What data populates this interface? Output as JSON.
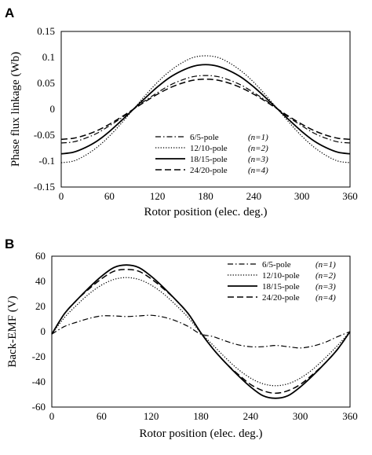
{
  "chart_data": [
    {
      "panel": "A",
      "type": "line",
      "xlabel": "Rotor position (elec. deg.)",
      "ylabel": "Phase flux linkage (Wb)",
      "xlim": [
        0,
        360
      ],
      "ylim": [
        -0.15,
        0.15
      ],
      "xticks": [
        "0",
        "60",
        "120",
        "180",
        "240",
        "300",
        "360"
      ],
      "yticks": [
        "0.15",
        "0.1",
        "0.05",
        "0",
        "-0.05",
        "-0.1",
        "-0.15"
      ],
      "grid": false,
      "legend_placement": "bottom-right",
      "x": [
        0,
        15,
        30,
        45,
        60,
        75,
        90,
        105,
        120,
        135,
        150,
        165,
        180,
        195,
        210,
        225,
        240,
        255,
        270,
        285,
        300,
        315,
        330,
        345,
        360
      ],
      "series": [
        {
          "name": "6/5-pole",
          "n_label": "(n=1)",
          "style": "dashdot",
          "values": [
            -0.065,
            -0.063,
            -0.056,
            -0.046,
            -0.032,
            -0.017,
            0.0,
            0.017,
            0.032,
            0.046,
            0.056,
            0.063,
            0.065,
            0.063,
            0.056,
            0.046,
            0.032,
            0.017,
            0.0,
            -0.017,
            -0.032,
            -0.046,
            -0.056,
            -0.063,
            -0.065
          ]
        },
        {
          "name": "12/10-pole",
          "n_label": "(n=2)",
          "style": "dotted",
          "values": [
            -0.103,
            -0.1,
            -0.089,
            -0.073,
            -0.052,
            -0.027,
            0.0,
            0.027,
            0.052,
            0.073,
            0.089,
            0.1,
            0.103,
            0.1,
            0.089,
            0.073,
            0.052,
            0.027,
            0.0,
            -0.027,
            -0.052,
            -0.073,
            -0.089,
            -0.1,
            -0.103
          ]
        },
        {
          "name": "18/15-pole",
          "n_label": "(n=3)",
          "style": "solid",
          "values": [
            -0.086,
            -0.083,
            -0.074,
            -0.061,
            -0.043,
            -0.022,
            0.0,
            0.022,
            0.043,
            0.061,
            0.074,
            0.083,
            0.086,
            0.083,
            0.074,
            0.061,
            0.043,
            0.022,
            0.0,
            -0.022,
            -0.043,
            -0.061,
            -0.074,
            -0.083,
            -0.086
          ]
        },
        {
          "name": "24/20-pole",
          "n_label": "(n=4)",
          "style": "dashed",
          "values": [
            -0.058,
            -0.056,
            -0.05,
            -0.041,
            -0.029,
            -0.015,
            0.0,
            0.015,
            0.029,
            0.041,
            0.05,
            0.056,
            0.058,
            0.056,
            0.05,
            0.041,
            0.029,
            0.015,
            0.0,
            -0.015,
            -0.029,
            -0.041,
            -0.05,
            -0.056,
            -0.058
          ]
        }
      ]
    },
    {
      "panel": "B",
      "type": "line",
      "xlabel": "Rotor position (elec. deg.)",
      "ylabel": "Back-EMF (V)",
      "xlim": [
        0,
        360
      ],
      "ylim": [
        -60,
        60
      ],
      "xticks": [
        "0",
        "60",
        "120",
        "180",
        "240",
        "300",
        "360"
      ],
      "yticks": [
        "60",
        "40",
        "20",
        "0",
        "-20",
        "-40",
        "-60"
      ],
      "grid": false,
      "legend_placement": "top-right",
      "x": [
        0,
        15,
        30,
        45,
        60,
        75,
        90,
        105,
        120,
        135,
        150,
        165,
        180,
        195,
        210,
        225,
        240,
        255,
        270,
        285,
        300,
        315,
        330,
        345,
        360
      ],
      "series": [
        {
          "name": "6/5-pole",
          "n_label": "(n=1)",
          "style": "dashdot",
          "values": [
            -2,
            4,
            7.5,
            10.5,
            12.5,
            12.5,
            12,
            12.5,
            13,
            11.5,
            8.5,
            4,
            -2,
            -4,
            -7.5,
            -10.5,
            -12,
            -12,
            -11,
            -12,
            -13,
            -11.5,
            -8.5,
            -4,
            0
          ]
        },
        {
          "name": "12/10-pole",
          "n_label": "(n=2)",
          "style": "dotted",
          "values": [
            -2,
            11,
            21,
            30,
            37,
            41.5,
            43,
            41.5,
            37,
            30,
            21,
            11,
            -1,
            -11,
            -21,
            -30,
            -37,
            -41.5,
            -43,
            -41.5,
            -37,
            -30,
            -21,
            -11,
            0
          ]
        },
        {
          "name": "18/15-pole",
          "n_label": "(n=3)",
          "style": "solid",
          "values": [
            -2,
            14,
            25,
            35,
            44,
            51,
            53,
            51,
            44,
            35,
            25,
            14,
            -1,
            -14,
            -25,
            -35,
            -44,
            -51,
            -53,
            -51,
            -44,
            -35,
            -25,
            -14,
            0
          ]
        },
        {
          "name": "24/20-pole",
          "n_label": "(n=4)",
          "style": "dashed",
          "values": [
            -2,
            14,
            25,
            34,
            42,
            48,
            49.5,
            48,
            42,
            34,
            25,
            14,
            -1,
            -14,
            -25,
            -34,
            -42,
            -47,
            -49,
            -47,
            -42,
            -34,
            -25,
            -14,
            0
          ]
        }
      ]
    }
  ]
}
